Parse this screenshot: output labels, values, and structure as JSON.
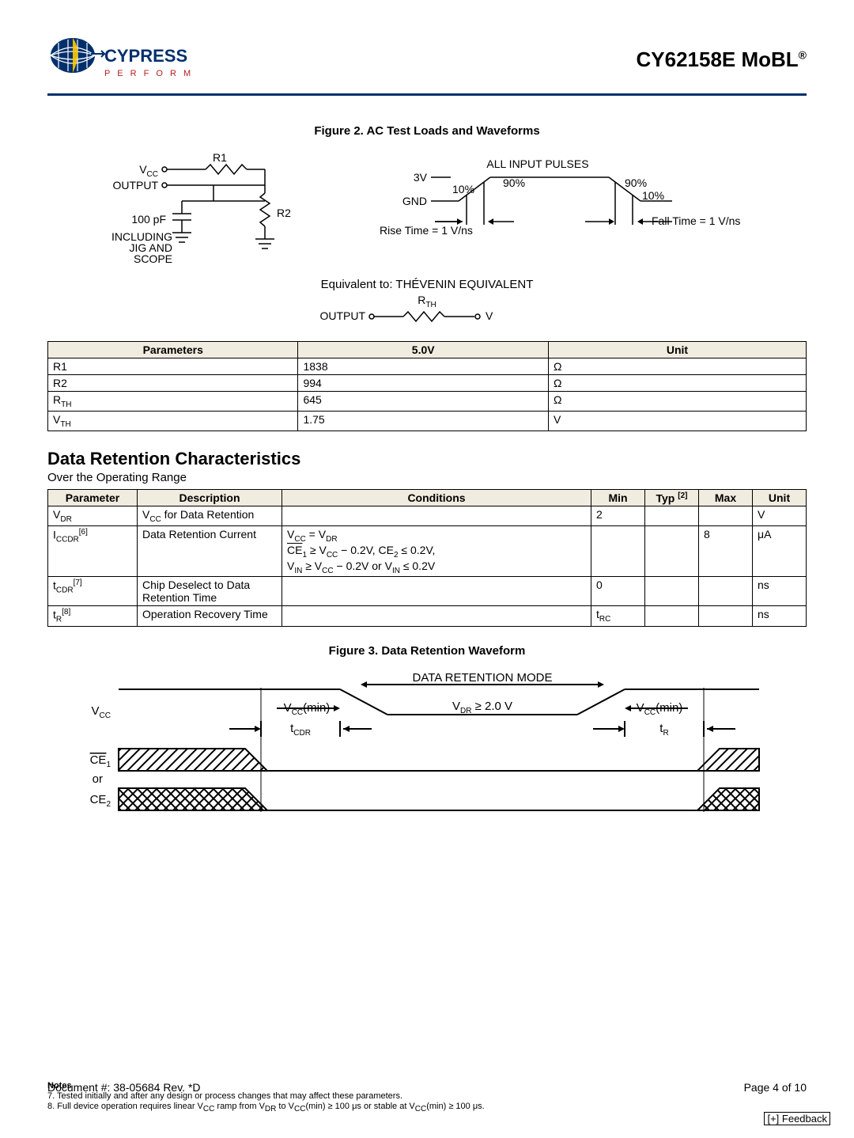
{
  "header": {
    "brand_top": "CYPRESS",
    "brand_bottom": "P E R F O R M",
    "title_main": "CY62158E MoBL",
    "title_reg": "®"
  },
  "figure2": {
    "caption": "Figure 2.  AC Test Loads and Waveforms",
    "labels": {
      "vcc": "V",
      "vcc_sub": "CC",
      "output": "OUTPUT",
      "r1": "R1",
      "r2": "R2",
      "cap": "100 pF",
      "including": "INCLUDING",
      "jig": "JIG AND",
      "scope": "SCOPE",
      "threeV": "3V",
      "gnd": "GND",
      "all_input": "ALL INPUT PULSES",
      "ten_l": "10%",
      "ninety_l": "90%",
      "ninety_r": "90%",
      "ten_r": "10%",
      "rise": "Rise Time = 1 V/ns",
      "fall": "Fall Time = 1 V/ns",
      "equiv": "Equivalent to: THÉVENIN EQUIVALENT",
      "out2": "OUTPUT",
      "rth": "R",
      "rth_sub": "TH",
      "v": "V"
    }
  },
  "params_table": {
    "headers": [
      "Parameters",
      "5.0V",
      "Unit"
    ],
    "rows": [
      {
        "p": "R1",
        "v": "1838",
        "u": "Ω"
      },
      {
        "p": "R2",
        "v": "994",
        "u": "Ω"
      },
      {
        "p_html": "R<sub>TH</sub>",
        "p": "R",
        "p_sub": "TH",
        "v": "645",
        "u": "Ω"
      },
      {
        "p_html": "V<sub>TH</sub>",
        "p": "V",
        "p_sub": "TH",
        "v": "1.75",
        "u": "V"
      }
    ]
  },
  "section2": {
    "title": "Data Retention Characteristics",
    "sub": "Over the Operating Range"
  },
  "retention_table": {
    "headers": [
      "Parameter",
      "Description",
      "Conditions",
      "Min",
      "Typ",
      "Max",
      "Unit"
    ],
    "typ_note": "[2]",
    "rows": [
      {
        "param": "V",
        "param_sub": "DR",
        "desc_pre": "V",
        "desc_sub": "CC",
        "desc_post": " for Data Retention",
        "cond": "",
        "min": "2",
        "typ": "",
        "max": "",
        "unit": "V"
      },
      {
        "param": "I",
        "param_sub": "CCDR",
        "param_note": "[6]",
        "desc": "Data Retention Current",
        "cond_lines": [
          "V<span class='sub'>CC</span> = V<span class='sub'>DR</span>",
          "<span class='ol'>CE</span><span class='sub'>1</span> ≥ V<span class='sub'>CC</span> − 0.2V, CE<span class='sub'>2</span> ≤ 0.2V,",
          "V<span class='sub'>IN</span> ≥ V<span class='sub'>CC</span> − 0.2V or V<span class='sub'>IN</span> ≤ 0.2V"
        ],
        "min": "",
        "typ": "",
        "max": "8",
        "unit": "μA"
      },
      {
        "param": "t",
        "param_sub": "CDR",
        "param_note": "[7]",
        "desc": "Chip Deselect to Data Retention Time",
        "cond": "",
        "min": "0",
        "typ": "",
        "max": "",
        "unit": "ns"
      },
      {
        "param": "t",
        "param_sub": "R",
        "param_note": "[8]",
        "desc": "Operation Recovery Time",
        "cond": "",
        "min_html": "t<span class='sub'>RC</span>",
        "typ": "",
        "max": "",
        "unit": "ns"
      }
    ]
  },
  "figure3": {
    "caption": "Figure 3.  Data Retention Waveform",
    "labels": {
      "vcc": "V",
      "vcc_sub": "CC",
      "vcc_min_l": "V",
      "vcc_min_l_sub": "CC",
      "vcc_min_l_post": "(min)",
      "vcc_min_r": "V",
      "vcc_min_r_sub": "CC",
      "vcc_min_r_post": "(min)",
      "tcdr": "t",
      "tcdr_sub": "CDR",
      "tr": "t",
      "tr_sub": "R",
      "drm": "DATA RETENTION MODE",
      "vdr": "V",
      "vdr_sub": "DR",
      "vdr_post": " ≥ 2.0 V",
      "ce1": "CE",
      "ce1_sub": "1",
      "or": "or",
      "ce2": "CE",
      "ce2_sub": "2"
    }
  },
  "notes": {
    "heading": "Notes",
    "items": [
      "7.  Tested initially and after any design or process changes that may affect these parameters.",
      "8.  Full device operation requires linear V<span class='sub'>CC</span> ramp from V<span class='sub'>DR</span> to V<span class='sub'>CC</span>(min) ≥ 100 μs or stable at V<span class='sub'>CC</span>(min) ≥ 100 μs."
    ]
  },
  "footer": {
    "doc": "Document #: 38-05684 Rev. *D",
    "page": "Page 4 of 10",
    "feedback": "[+] Feedback"
  },
  "colors": {
    "brand_blue": "#002f6c",
    "brand_red": "#b22222",
    "table_header_bg": "#f1ece0"
  }
}
